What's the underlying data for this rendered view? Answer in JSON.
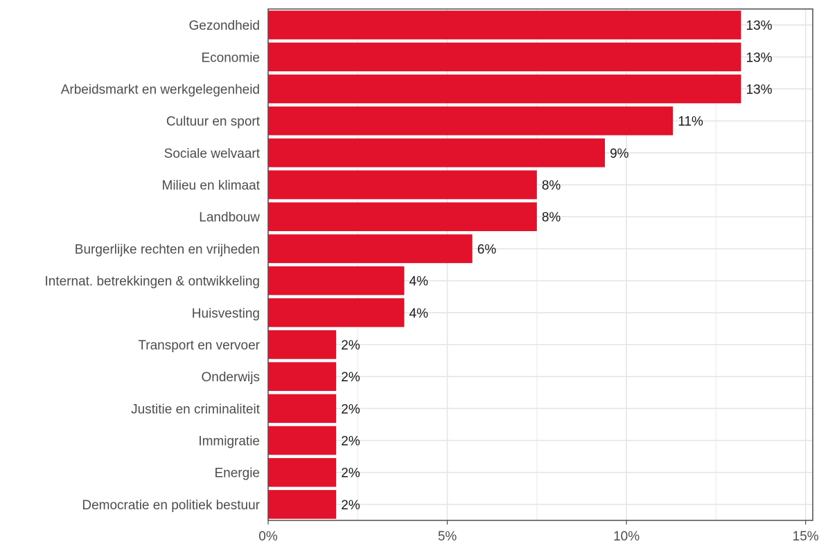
{
  "chart_data": {
    "type": "bar",
    "orientation": "horizontal",
    "categories": [
      "Gezondheid",
      "Economie",
      "Arbeidsmarkt en werkgelegenheid",
      "Cultuur en sport",
      "Sociale welvaart",
      "Milieu en klimaat",
      "Landbouw",
      "Burgerlijke rechten en vrijheden",
      "Internat. betrekkingen & ontwikkeling",
      "Huisvesting",
      "Transport en vervoer",
      "Onderwijs",
      "Justitie en criminaliteit",
      "Immigratie",
      "Energie",
      "Democratie en politiek bestuur"
    ],
    "values": [
      13.2,
      13.2,
      13.2,
      11.3,
      9.4,
      7.5,
      7.5,
      5.7,
      3.8,
      3.8,
      1.9,
      1.9,
      1.9,
      1.9,
      1.9,
      1.9
    ],
    "value_labels": [
      "13%",
      "13%",
      "13%",
      "11%",
      "9%",
      "8%",
      "8%",
      "6%",
      "4%",
      "4%",
      "2%",
      "2%",
      "2%",
      "2%",
      "2%",
      "2%"
    ],
    "x_ticks": [
      0,
      5,
      10,
      15
    ],
    "x_tick_labels": [
      "0%",
      "5%",
      "10%",
      "15%"
    ],
    "xlim": [
      0,
      15.2
    ],
    "grid": true,
    "colors": {
      "bar": "#e2122c",
      "grid": "#e5e5e5",
      "border": "#4d4d4d"
    }
  }
}
